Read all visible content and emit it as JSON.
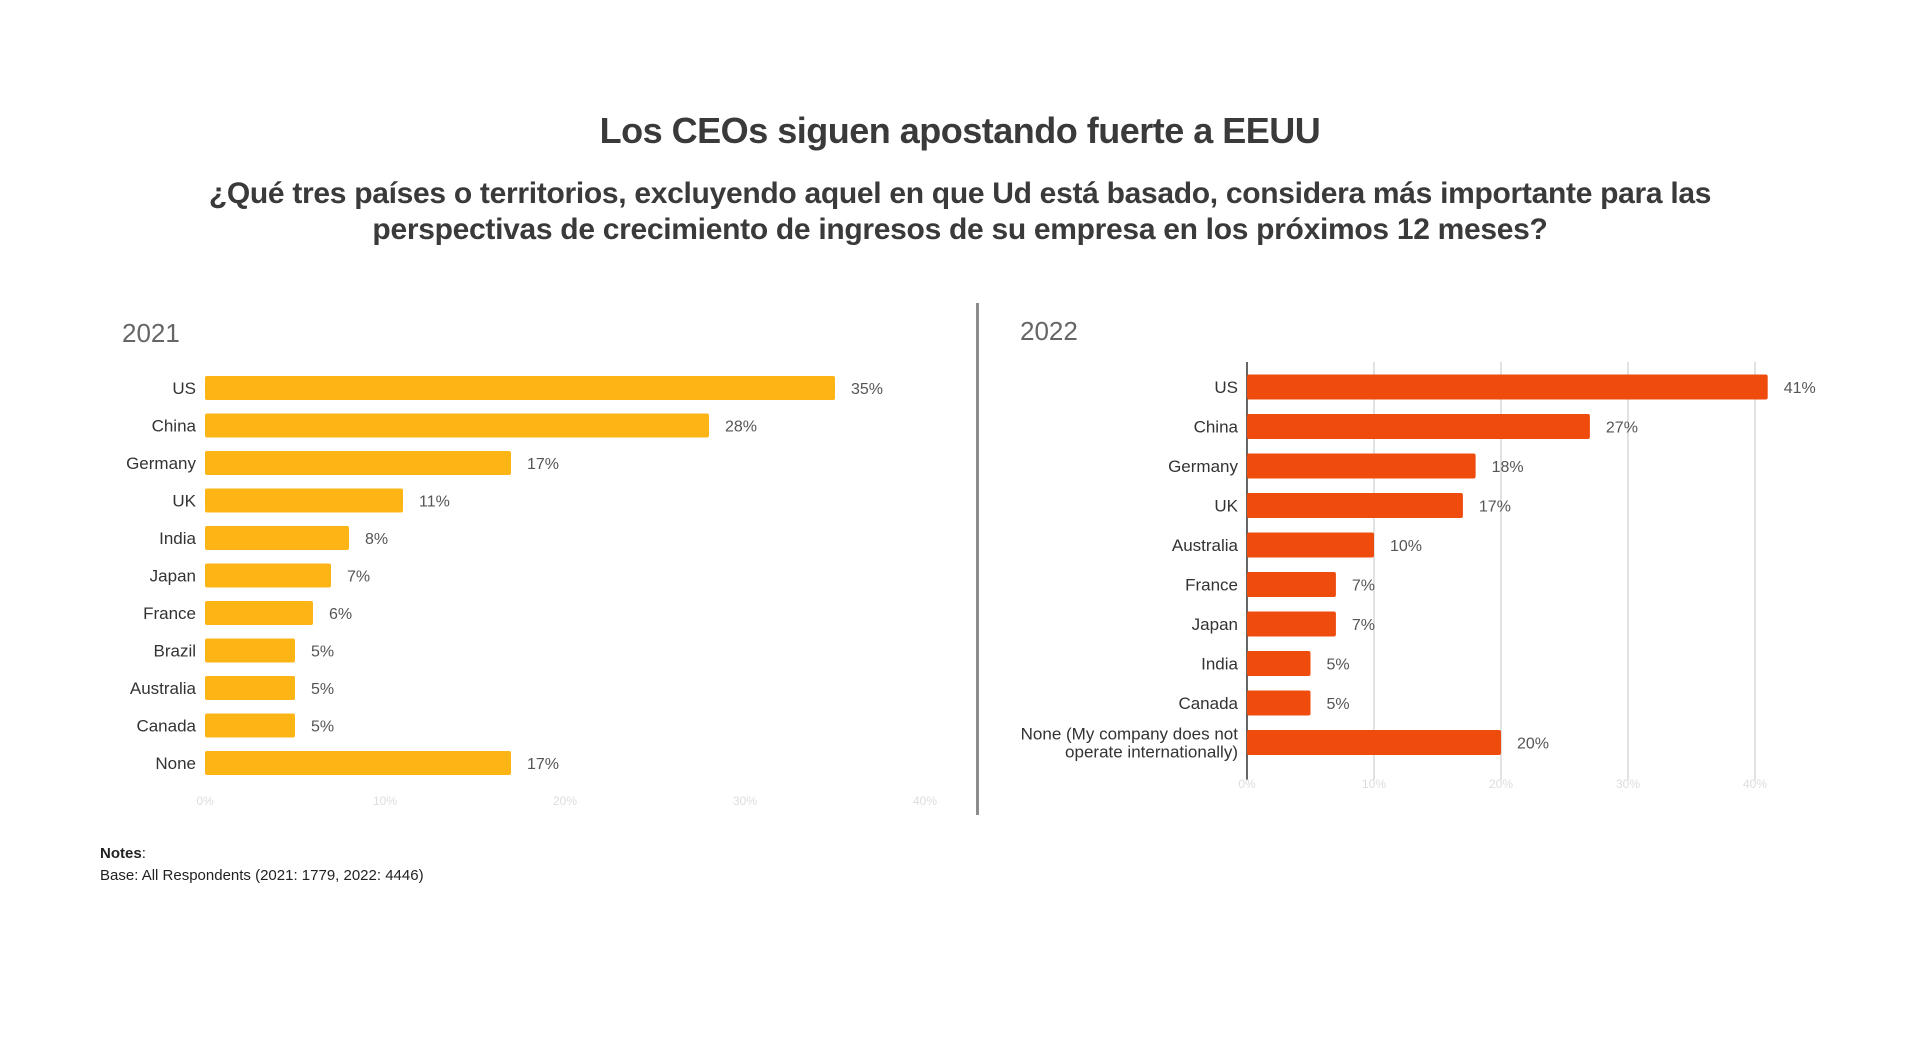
{
  "header": {
    "title": "Los CEOs siguen apostando fuerte a EEUU",
    "subtitle": "¿Qué tres países o territorios, excluyendo aquel en que Ud está basado, considera más importante para las perspectivas de crecimiento de ingresos de su empresa en los próximos 12 meses?"
  },
  "notes": {
    "heading": "Notes",
    "colon": ":",
    "base": "Base: All Respondents (2021: 1779, 2022: 4446)"
  },
  "chart_data": [
    {
      "type": "bar",
      "orientation": "horizontal",
      "title": "2021",
      "categories": [
        "US",
        "China",
        "Germany",
        "UK",
        "India",
        "Japan",
        "France",
        "Brazil",
        "Australia",
        "Canada",
        "None"
      ],
      "values": [
        35,
        28,
        17,
        11,
        8,
        7,
        6,
        5,
        5,
        5,
        17
      ],
      "value_labels": [
        "35%",
        "28%",
        "17%",
        "11%",
        "8%",
        "7%",
        "6%",
        "5%",
        "5%",
        "5%",
        "17%"
      ],
      "color": "#FDB515",
      "xlim": [
        0,
        40
      ],
      "xticks": [
        "0%",
        "10%",
        "20%",
        "30%",
        "40%"
      ],
      "grid": false
    },
    {
      "type": "bar",
      "orientation": "horizontal",
      "title": "2022",
      "categories": [
        "US",
        "China",
        "Germany",
        "UK",
        "Australia",
        "France",
        "Japan",
        "India",
        "Canada",
        "None (My company does not operate internationally)"
      ],
      "values": [
        41,
        27,
        18,
        17,
        10,
        7,
        7,
        5,
        5,
        20
      ],
      "value_labels": [
        "41%",
        "27%",
        "18%",
        "17%",
        "10%",
        "7%",
        "7%",
        "5%",
        "5%",
        "20%"
      ],
      "color": "#EE4B0C",
      "xlim": [
        0,
        40
      ],
      "xticks": [
        "0%",
        "10%",
        "20%",
        "30%",
        "40%"
      ],
      "grid": true
    }
  ]
}
